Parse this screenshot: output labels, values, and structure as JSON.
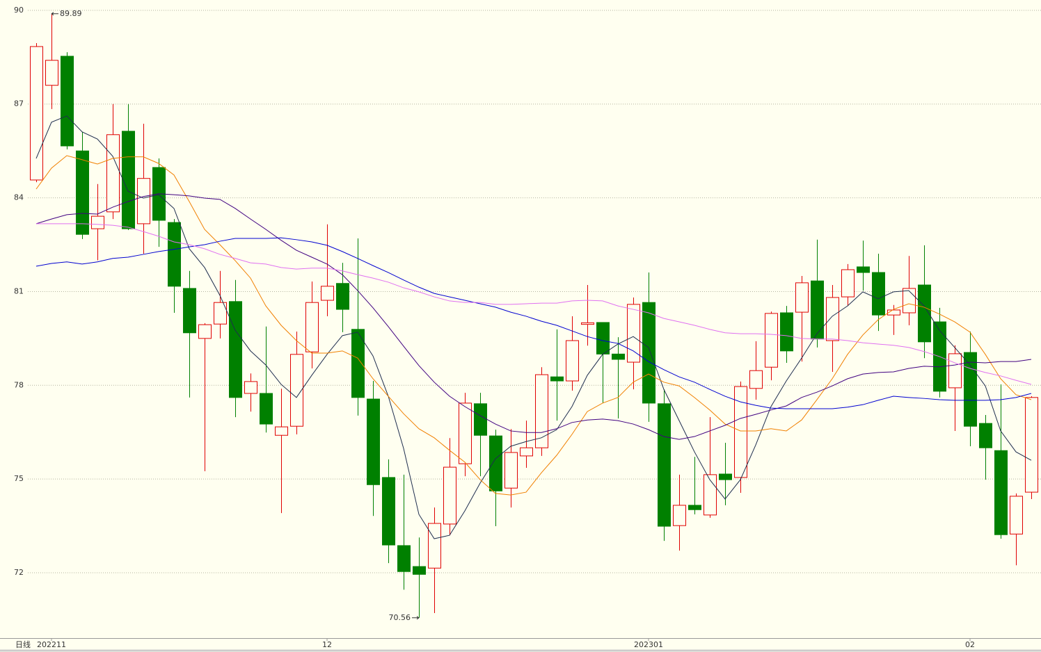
{
  "chart_data": {
    "type": "candlestick",
    "period_label": "日线",
    "categories": [
      null,
      "202211",
      null,
      null,
      null,
      null,
      null,
      null,
      null,
      null,
      null,
      null,
      null,
      null,
      null,
      null,
      null,
      null,
      null,
      "12",
      null,
      null,
      null,
      null,
      null,
      null,
      null,
      null,
      null,
      null,
      null,
      null,
      null,
      null,
      null,
      null,
      null,
      null,
      null,
      null,
      "202301",
      null,
      null,
      null,
      null,
      null,
      null,
      null,
      null,
      null,
      null,
      null,
      null,
      null,
      null,
      null,
      null,
      null,
      null,
      null,
      null,
      "02",
      null,
      null,
      null,
      null
    ],
    "open": [
      84.57,
      87.6,
      88.53,
      85.5,
      83.01,
      83.55,
      86.13,
      83.17,
      84.97,
      83.21,
      81.1,
      79.5,
      79.96,
      80.68,
      77.74,
      77.74,
      76.4,
      76.69,
      79.07,
      80.72,
      81.26,
      79.79,
      77.56,
      75.05,
      72.87,
      72.2,
      72.15,
      73.56,
      75.49,
      77.41,
      76.38,
      74.71,
      75.74,
      76.0,
      78.27,
      78.14,
      79.95,
      80.01,
      79.0,
      78.74,
      80.65,
      77.41,
      73.51,
      74.16,
      73.85,
      75.16,
      75.05,
      77.9,
      78.58,
      80.32,
      80.34,
      81.34,
      79.43,
      80.83,
      81.79,
      81.61,
      80.25,
      80.32,
      81.21,
      80.03,
      77.92,
      79.05,
      76.78,
      75.91,
      73.24,
      74.58
    ],
    "high": [
      88.95,
      89.89,
      88.66,
      86.1,
      84.44,
      87.0,
      87.0,
      86.37,
      85.26,
      83.32,
      81.66,
      79.99,
      81.66,
      81.37,
      78.38,
      79.88,
      77.89,
      79.72,
      81.32,
      83.15,
      81.92,
      82.7,
      78.14,
      75.63,
      75.14,
      73.13,
      74.09,
      76.31,
      77.76,
      77.76,
      76.58,
      76.6,
      76.87,
      78.58,
      79.79,
      80.21,
      81.21,
      80.01,
      79.54,
      80.81,
      81.61,
      77.87,
      75.14,
      75.71,
      76.98,
      76.16,
      78.12,
      79.41,
      80.36,
      80.54,
      81.5,
      82.66,
      81.21,
      81.88,
      82.63,
      82.21,
      80.57,
      82.14,
      82.48,
      80.48,
      79.28,
      79.72,
      77.05,
      78.03,
      74.54,
      77.65
    ],
    "low": [
      84.5,
      86.84,
      85.55,
      82.68,
      82.0,
      83.32,
      82.97,
      82.21,
      82.43,
      80.32,
      77.61,
      75.25,
      79.5,
      76.98,
      77.16,
      76.49,
      73.91,
      76.43,
      78.54,
      80.21,
      79.7,
      77.03,
      73.82,
      72.31,
      71.46,
      70.56,
      70.71,
      73.2,
      75.09,
      75.09,
      73.49,
      74.09,
      75.36,
      75.74,
      76.87,
      77.83,
      79.27,
      77.43,
      76.94,
      77.87,
      76.83,
      73.02,
      72.71,
      73.87,
      73.76,
      74.16,
      74.56,
      77.54,
      78.16,
      78.72,
      78.76,
      79.21,
      78.43,
      80.54,
      81.03,
      79.74,
      79.61,
      79.92,
      78.87,
      77.61,
      76.54,
      76.05,
      74.98,
      73.09,
      72.24,
      74.36
    ],
    "close": [
      88.84,
      88.4,
      85.66,
      82.83,
      83.41,
      86.02,
      83.01,
      84.62,
      83.28,
      81.17,
      79.68,
      79.94,
      80.65,
      77.61,
      78.12,
      76.76,
      76.67,
      78.99,
      80.65,
      81.17,
      80.43,
      77.61,
      74.82,
      72.89,
      72.04,
      71.95,
      73.58,
      75.38,
      77.43,
      76.4,
      74.62,
      75.85,
      76.0,
      78.34,
      78.14,
      79.43,
      80.0,
      79.0,
      78.83,
      80.59,
      77.43,
      73.49,
      74.16,
      74.02,
      75.14,
      74.98,
      77.96,
      78.47,
      80.3,
      79.1,
      81.28,
      79.48,
      80.81,
      81.7,
      81.61,
      80.25,
      80.41,
      81.1,
      79.39,
      77.81,
      79.01,
      76.69,
      76.0,
      73.22,
      74.45,
      77.61
    ],
    "up_color": "#e00000",
    "down_color": "#008000",
    "lines": [
      {
        "color": "#1e2d4e",
        "values": [
          85.26,
          86.42,
          86.62,
          86.11,
          85.88,
          85.33,
          84.21,
          83.99,
          84.1,
          83.66,
          82.37,
          81.77,
          80.88,
          79.76,
          79.1,
          78.65,
          78.03,
          77.61,
          78.32,
          78.99,
          79.59,
          79.7,
          78.94,
          77.65,
          75.98,
          73.87,
          73.09,
          73.2,
          73.98,
          74.87,
          75.65,
          76.05,
          76.2,
          76.32,
          76.58,
          77.32,
          78.32,
          78.99,
          79.32,
          79.56,
          79.21,
          77.87,
          76.87,
          75.87,
          74.98,
          74.36,
          74.98,
          76.09,
          77.32,
          78.14,
          78.87,
          79.65,
          80.21,
          80.54,
          80.99,
          80.77,
          80.99,
          81.03,
          80.54,
          79.76,
          79.21,
          78.65,
          77.98,
          76.54,
          75.87,
          75.6
        ]
      },
      {
        "color": "#f08000",
        "values": [
          84.28,
          84.95,
          85.35,
          85.22,
          85.08,
          85.26,
          85.31,
          85.31,
          85.1,
          84.73,
          83.88,
          82.99,
          82.5,
          81.99,
          81.43,
          80.54,
          79.92,
          79.43,
          79.03,
          79.03,
          79.1,
          78.87,
          78.21,
          77.65,
          77.09,
          76.61,
          76.32,
          75.92,
          75.54,
          74.98,
          74.54,
          74.49,
          74.58,
          75.2,
          75.76,
          76.43,
          77.16,
          77.43,
          77.61,
          78.1,
          78.36,
          78.1,
          77.98,
          77.61,
          77.21,
          76.76,
          76.54,
          76.54,
          76.61,
          76.54,
          76.89,
          77.54,
          78.21,
          78.99,
          79.61,
          80.1,
          80.43,
          80.61,
          80.5,
          80.28,
          80.03,
          79.7,
          78.99,
          78.21,
          77.7,
          77.54
        ]
      },
      {
        "color": "#400080",
        "values": [
          83.17,
          83.32,
          83.46,
          83.5,
          83.48,
          83.7,
          83.88,
          84.04,
          84.13,
          84.1,
          84.06,
          83.99,
          83.95,
          83.66,
          83.32,
          82.99,
          82.64,
          82.32,
          82.1,
          81.88,
          81.54,
          81.03,
          80.48,
          79.88,
          79.25,
          78.63,
          78.1,
          77.65,
          77.32,
          77.03,
          76.76,
          76.54,
          76.49,
          76.49,
          76.61,
          76.81,
          76.89,
          76.92,
          76.87,
          76.76,
          76.58,
          76.36,
          76.27,
          76.36,
          76.54,
          76.72,
          76.94,
          77.07,
          77.21,
          77.34,
          77.61,
          77.78,
          77.98,
          78.21,
          78.36,
          78.41,
          78.43,
          78.54,
          78.61,
          78.59,
          78.65,
          78.74,
          78.72,
          78.76,
          78.76,
          78.83
        ]
      },
      {
        "color": "#0000d0",
        "values": [
          81.81,
          81.9,
          81.95,
          81.88,
          81.95,
          82.06,
          82.1,
          82.19,
          82.28,
          82.35,
          82.43,
          82.5,
          82.61,
          82.7,
          82.7,
          82.7,
          82.72,
          82.66,
          82.59,
          82.48,
          82.28,
          82.06,
          81.83,
          81.61,
          81.37,
          81.14,
          80.94,
          80.83,
          80.72,
          80.61,
          80.5,
          80.34,
          80.21,
          80.05,
          79.92,
          79.74,
          79.56,
          79.43,
          79.34,
          79.1,
          78.76,
          78.5,
          78.27,
          78.1,
          77.87,
          77.65,
          77.47,
          77.36,
          77.27,
          77.25,
          77.25,
          77.25,
          77.25,
          77.3,
          77.38,
          77.52,
          77.65,
          77.61,
          77.58,
          77.54,
          77.52,
          77.52,
          77.52,
          77.54,
          77.61,
          77.74
        ]
      },
      {
        "color": "#e070f0",
        "values": [
          83.17,
          83.17,
          83.17,
          83.17,
          83.15,
          83.12,
          83.06,
          82.92,
          82.77,
          82.59,
          82.5,
          82.37,
          82.19,
          82.06,
          81.92,
          81.88,
          81.77,
          81.72,
          81.75,
          81.75,
          81.66,
          81.54,
          81.43,
          81.3,
          81.12,
          80.99,
          80.83,
          80.7,
          80.65,
          80.65,
          80.59,
          80.59,
          80.61,
          80.63,
          80.63,
          80.7,
          80.72,
          80.7,
          80.54,
          80.43,
          80.32,
          80.14,
          80.03,
          79.92,
          79.79,
          79.68,
          79.65,
          79.65,
          79.63,
          79.59,
          79.5,
          79.48,
          79.48,
          79.43,
          79.36,
          79.32,
          79.28,
          79.21,
          79.08,
          78.92,
          78.72,
          78.54,
          78.41,
          78.3,
          78.16,
          78.03
        ]
      }
    ],
    "annotations": [
      {
        "label": "89.89",
        "value": 89.89,
        "at": "high"
      },
      {
        "label": "70.56",
        "value": 70.56,
        "at": "low"
      }
    ],
    "ylim": [
      69.91,
      90.33
    ],
    "yticks": [
      72,
      75,
      78,
      81,
      84,
      87,
      90
    ],
    "grid": true
  }
}
